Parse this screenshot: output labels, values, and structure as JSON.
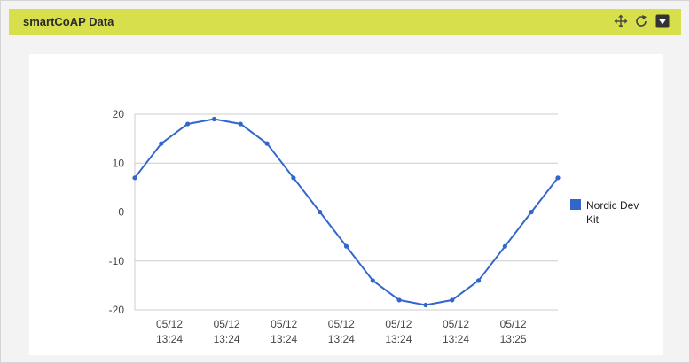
{
  "widget": {
    "title": "smartCoAP Data",
    "tools": [
      {
        "name": "move",
        "icon": "move-arrows-icon"
      },
      {
        "name": "refresh",
        "icon": "refresh-icon"
      },
      {
        "name": "collapse",
        "icon": "collapse-down-icon"
      }
    ]
  },
  "colors": {
    "header": "#d7e04c",
    "series": "#3366cc",
    "grid": "#cccccc",
    "zero_line": "#333333"
  },
  "chart_data": {
    "type": "line",
    "title": "",
    "xlabel": "",
    "ylabel": "",
    "ylim": [
      -20,
      20
    ],
    "yticks": [
      20,
      10,
      0,
      -10,
      -20
    ],
    "grid": true,
    "legend_position": "right",
    "x_tick_labels": [
      [
        "05/12",
        "13:24"
      ],
      [
        "05/12",
        "13:24"
      ],
      [
        "05/12",
        "13:24"
      ],
      [
        "05/12",
        "13:24"
      ],
      [
        "05/12",
        "13:24"
      ],
      [
        "05/12",
        "13:24"
      ],
      [
        "05/12",
        "13:25"
      ]
    ],
    "series": [
      {
        "name": "Nordic Dev Kit",
        "values": [
          7,
          14,
          18,
          19,
          18,
          14,
          7,
          0,
          -7,
          -14,
          -18,
          -19,
          -18,
          -14,
          -7,
          0,
          7
        ]
      }
    ]
  }
}
